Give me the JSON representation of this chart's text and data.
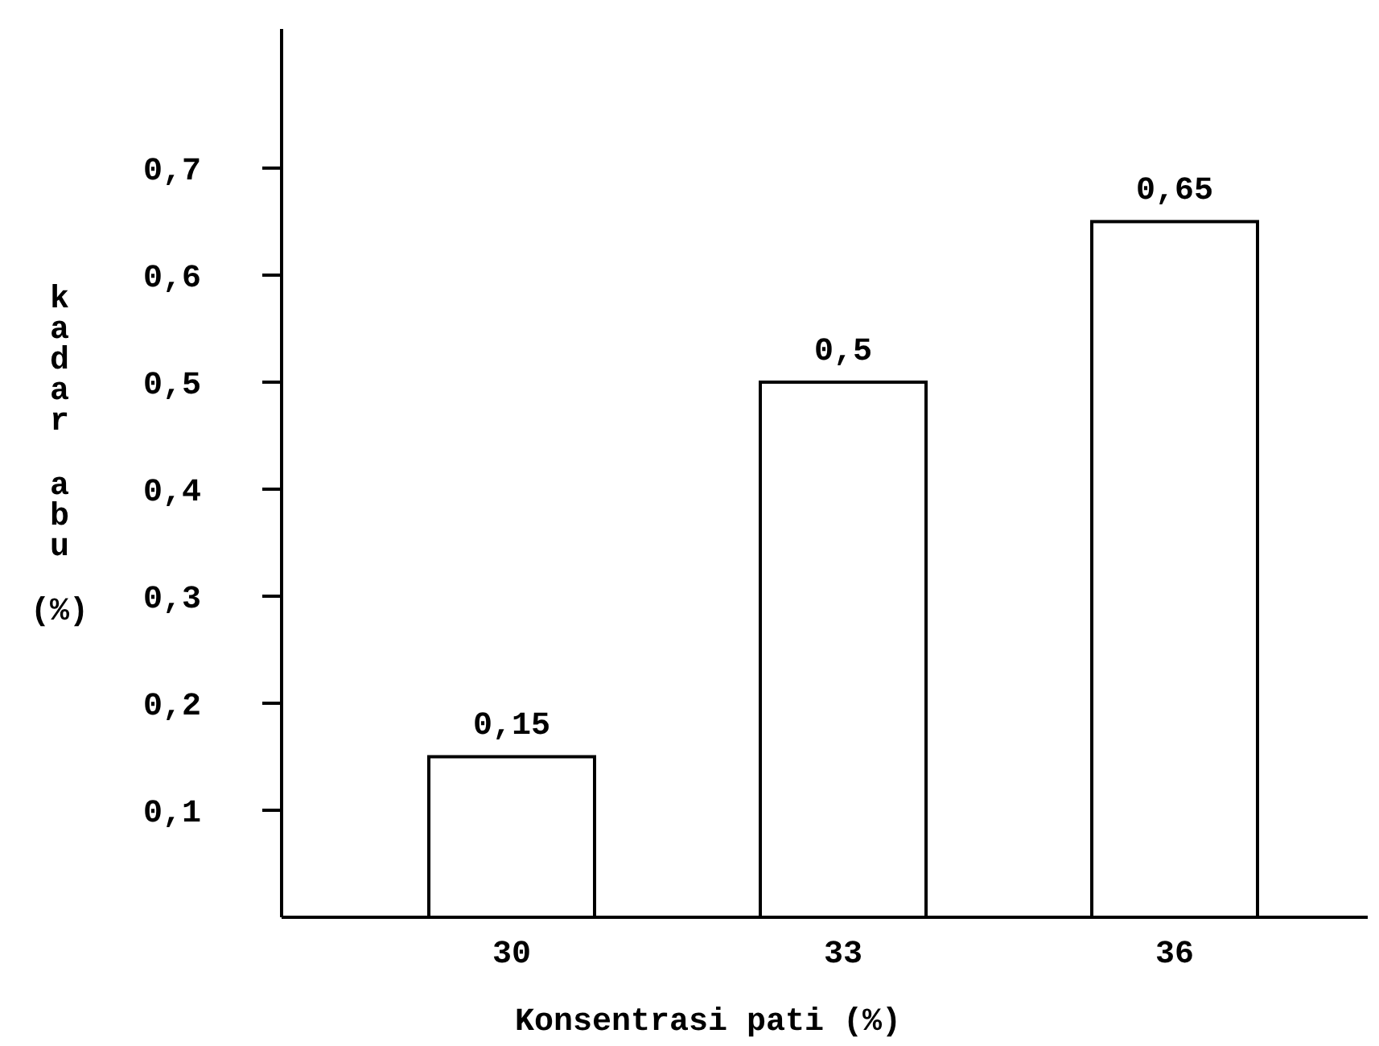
{
  "chart_data": {
    "type": "bar",
    "xlabel": "Konsentrasi pati (%)",
    "ylabel": "kadar abu (%)",
    "categories": [
      "30",
      "33",
      "36"
    ],
    "values": [
      0.15,
      0.5,
      0.65
    ],
    "value_labels": [
      "0,15",
      "0,5",
      "0,65"
    ],
    "color": "#ffffff",
    "ylim": [
      0,
      0.83
    ],
    "yticks": [
      {
        "value": 0.1,
        "label": "0,1"
      },
      {
        "value": 0.2,
        "label": "0,2"
      },
      {
        "value": 0.3,
        "label": "0,3"
      },
      {
        "value": 0.4,
        "label": "0,4"
      },
      {
        "value": 0.5,
        "label": "0,5"
      },
      {
        "value": 0.6,
        "label": "0,6"
      },
      {
        "value": 0.7,
        "label": "0,7"
      }
    ],
    "grid": false
  }
}
